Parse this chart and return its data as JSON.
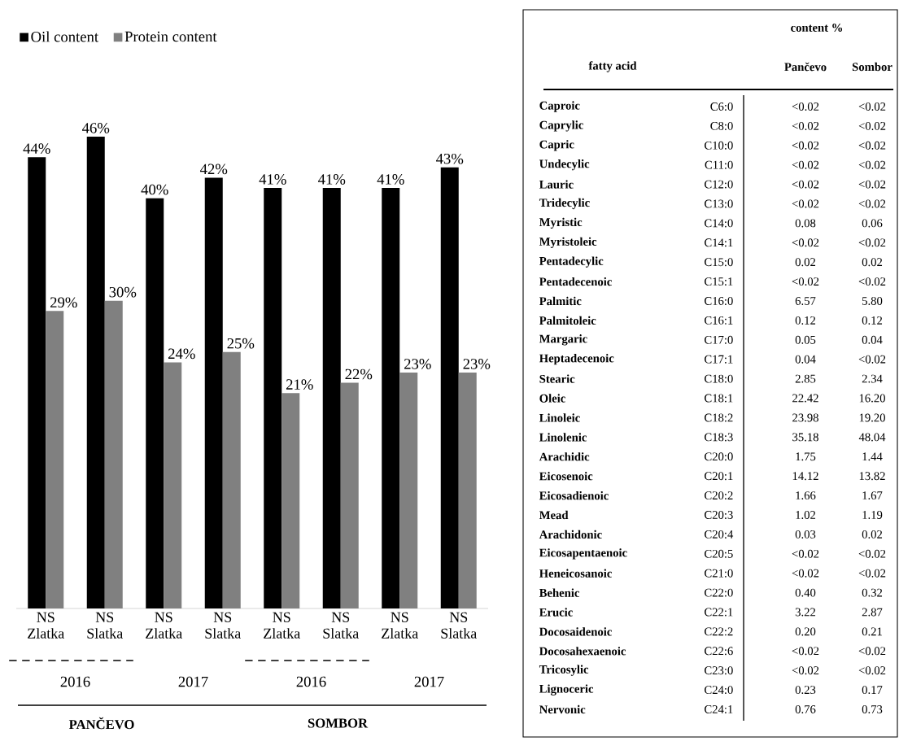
{
  "chart_data": [
    {
      "type": "bar",
      "categories": [
        "NS Zlatka",
        "NS Slatka",
        "NS Zlatka",
        "NS Slatka",
        "NS Zlatka",
        "NS Slatka",
        "NS Zlatka",
        "NS Slatka"
      ],
      "series": [
        {
          "name": "Oil content",
          "color": "#000000",
          "values": [
            44,
            46,
            40,
            42,
            41,
            41,
            41,
            43
          ],
          "value_labels": [
            "44%",
            "46%",
            "40%",
            "42%",
            "41%",
            "41%",
            "41%",
            "43%"
          ]
        },
        {
          "name": "Protein content",
          "color": "#808080",
          "values": [
            29,
            30,
            24,
            25,
            21,
            22,
            23,
            23
          ],
          "value_labels": [
            "29%",
            "30%",
            "24%",
            "25%",
            "21%",
            "22%",
            "23%",
            "23%"
          ]
        }
      ],
      "legend": "top left",
      "annotations": [
        "2016",
        "2017",
        "2016",
        "2017",
        "PANČEVO",
        "SOMBOR"
      ]
    },
    {
      "type": "other",
      "title": "content %",
      "ylabel": "fatty acid",
      "categories": [
        "Pančevo",
        "Sombor"
      ],
      "y_categories": [
        "Caproic",
        "Caprylic",
        "Capric",
        "Undecylic",
        "Lauric",
        "Tridecylic",
        "Myristic",
        "Myristoleic",
        "Pentadecylic",
        "Pentadecenoic",
        "Palmitic",
        "Palmitoleic",
        "Margaric",
        "Heptadecenoic",
        "Stearic",
        "Oleic",
        "Linoleic",
        "Linolenic",
        "Arachidic",
        "Eicosenoic",
        "Eicosadienoic",
        "Mead",
        "Arachidonic",
        "Eicosapentaenoic",
        "Heneicosanoic",
        "Behenic",
        "Erucic",
        "Docosaidenoic",
        "Docosahexaenoic",
        "Tricosylic",
        "Lignoceric",
        "Nervonic"
      ],
      "y2_categories": [
        "C6:0",
        "C8:0",
        "C10:0",
        "C11:0",
        "C12:0",
        "C13:0",
        "C14:0",
        "C14:1",
        "C15:0",
        "C15:1",
        "C16:0",
        "C16:1",
        "C17:0",
        "C17:1",
        "C18:0",
        "C18:1",
        "C18:2",
        "C18:3",
        "C20:0",
        "C20:1",
        "C20:2",
        "C20:3",
        "C20:4",
        "C20:5",
        "C21:0",
        "C22:0",
        "C22:1",
        "C22:2",
        "C22:6",
        "C23:0",
        "C24:0",
        "C24:1"
      ],
      "cell_labels": [
        [
          "<0.02",
          "<0.02"
        ],
        [
          "<0.02",
          "<0.02"
        ],
        [
          "<0.02",
          "<0.02"
        ],
        [
          "<0.02",
          "<0.02"
        ],
        [
          "<0.02",
          "<0.02"
        ],
        [
          "<0.02",
          "<0.02"
        ],
        [
          "0.08",
          "0.06"
        ],
        [
          "<0.02",
          "<0.02"
        ],
        [
          "0.02",
          "0.02"
        ],
        [
          "<0.02",
          "<0.02"
        ],
        [
          "6.57",
          "5.80"
        ],
        [
          "0.12",
          "0.12"
        ],
        [
          "0.05",
          "0.04"
        ],
        [
          "0.04",
          "<0.02"
        ],
        [
          "2.85",
          "2.34"
        ],
        [
          "22.42",
          "16.20"
        ],
        [
          "23.98",
          "19.20"
        ],
        [
          "35.18",
          "48.04"
        ],
        [
          "1.75",
          "1.44"
        ],
        [
          "14.12",
          "13.82"
        ],
        [
          "1.66",
          "1.67"
        ],
        [
          "1.02",
          "1.19"
        ],
        [
          "0.03",
          "0.02"
        ],
        [
          "<0.02",
          "<0.02"
        ],
        [
          "<0.02",
          "<0.02"
        ],
        [
          "0.40",
          "0.32"
        ],
        [
          "3.22",
          "2.87"
        ],
        [
          "0.20",
          "0.21"
        ],
        [
          "<0.02",
          "<0.02"
        ],
        [
          "<0.02",
          "<0.02"
        ],
        [
          "0.23",
          "0.17"
        ],
        [
          "0.76",
          "0.73"
        ]
      ]
    }
  ]
}
